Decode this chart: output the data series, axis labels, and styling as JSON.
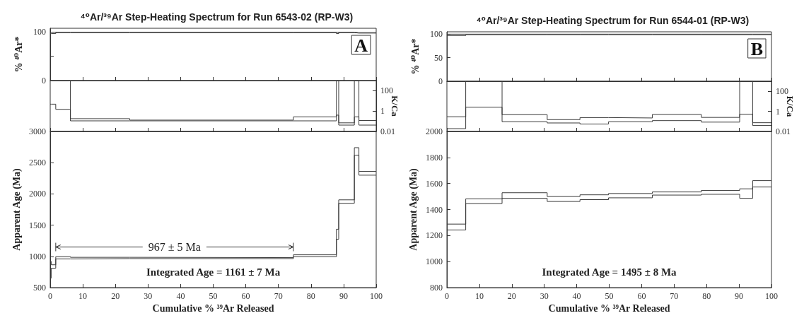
{
  "chart_data": [
    {
      "type": "step",
      "title": "⁴⁰Ar/³⁹Ar Step-Heating Spectrum for Run 6543-02 (RP-W3)",
      "ylabel": "% ⁴⁰Ar*",
      "xlim": [
        0,
        100
      ],
      "xticks": [
        0,
        10,
        20,
        30,
        40,
        50,
        60,
        70,
        80,
        90,
        100
      ],
      "ylim": [
        0,
        108
      ],
      "yticks": [
        0,
        {
          "value": 50,
          "label": null
        },
        100
      ],
      "tick_labels": "y",
      "annotations": [
        "A"
      ],
      "series": [
        {
          "color": "#3a3a3a",
          "x": [
            0,
            0.3,
            1.7,
            6.2,
            24.4,
            74.6,
            87.8,
            88.5,
            93.3,
            94.7,
            100
          ],
          "values": [
            100,
            100,
            100,
            100,
            100,
            100,
            100,
            100,
            99,
            99,
            99
          ]
        },
        {
          "color": "#3a3a3a",
          "x": [
            0,
            0.3,
            1.7,
            6.2,
            24.4,
            74.6,
            87.8,
            88.5,
            93.3,
            94.7,
            100
          ],
          "values": [
            97,
            97,
            99,
            99,
            99,
            99,
            97,
            99,
            98,
            98,
            98
          ]
        }
      ]
    },
    {
      "type": "step",
      "y2label": "K/Ca",
      "xlim": [
        0,
        100
      ],
      "xticks": [
        0,
        10,
        20,
        30,
        40,
        50,
        60,
        70,
        80,
        90,
        100
      ],
      "y2lim": [
        0.01,
        1000
      ],
      "y2ticks": [
        0.01,
        1,
        100
      ],
      "log": "y2",
      "tick_labels": "y",
      "series": [
        {
          "axis": "y2",
          "color": "#3a3a3a",
          "x": [
            0,
            0.3,
            1.7,
            6.2,
            24.4,
            74.6,
            87.8,
            88.5,
            93.3,
            94.7,
            100
          ],
          "values": [
            1000,
            1000,
            1000,
            0.18,
            0.13,
            0.27,
            1000,
            0.07,
            1000,
            0.12,
            0.12
          ]
        },
        {
          "axis": "y2",
          "color": "#3a3a3a",
          "x": [
            0,
            0.3,
            1.7,
            6.2,
            24.4,
            74.6,
            87.8,
            88.5,
            93.3,
            94.7,
            100
          ],
          "values": [
            4.8,
            4.8,
            1.5,
            0.11,
            0.11,
            0.11,
            0.4,
            0.042,
            0.27,
            0.042,
            0.042
          ]
        }
      ]
    },
    {
      "type": "step",
      "xlabel": "Cumulative % ³⁹Ar Released",
      "ylabel": "Apparent Age (Ma)",
      "xlim": [
        0,
        100
      ],
      "xticks": [
        0,
        10,
        20,
        30,
        40,
        50,
        60,
        70,
        80,
        90,
        100
      ],
      "ylim": [
        500,
        3000
      ],
      "yticks": [
        500,
        1000,
        1500,
        2000,
        2500,
        3000
      ],
      "annotations": [
        "967 ± 5 Ma",
        "Integrated Age = 1161 ± 7 Ma"
      ],
      "series": [
        {
          "color": "#3a3a3a",
          "x": [
            0,
            0.3,
            1.7,
            6.2,
            24.4,
            74.6,
            87.8,
            88.5,
            93.3,
            94.7,
            100
          ],
          "values": [
            920,
            865,
            995,
            985,
            980,
            1025,
            1435,
            1905,
            2740,
            2360,
            2360
          ]
        },
        {
          "color": "#3a3a3a",
          "x": [
            0,
            0.3,
            1.7,
            6.2,
            24.4,
            74.6,
            87.8,
            88.5,
            93.3,
            94.7,
            100
          ],
          "values": [
            650,
            810,
            960,
            965,
            965,
            995,
            1275,
            1850,
            2620,
            2300,
            2300
          ]
        }
      ]
    },
    {
      "type": "step",
      "title": "⁴⁰Ar/³⁹Ar Step-Heating Spectrum for Run 6544-01 (RP-W3)",
      "ylabel": "% ⁴⁰Ar*",
      "xlim": [
        0,
        100
      ],
      "xticks": [
        0,
        10,
        20,
        30,
        40,
        50,
        60,
        70,
        80,
        90,
        100
      ],
      "ylim": [
        0,
        105
      ],
      "yticks": [
        0,
        50,
        100
      ],
      "tick_labels": "y",
      "annotations": [
        "B"
      ],
      "series": [
        {
          "color": "#3a3a3a",
          "x": [
            0,
            5.8,
            17.0,
            30.9,
            41.0,
            49.8,
            63.3,
            78.4,
            90.2,
            94.2,
            100
          ],
          "values": [
            100,
            100,
            100,
            100,
            100,
            100,
            100,
            100,
            100,
            100,
            100
          ]
        },
        {
          "color": "#3a3a3a",
          "x": [
            0,
            5.8,
            17.0,
            30.9,
            41.0,
            49.8,
            63.3,
            78.4,
            90.2,
            94.2,
            100
          ],
          "values": [
            97,
            99,
            99,
            99,
            99,
            99,
            99,
            99,
            99,
            99,
            99
          ]
        }
      ]
    },
    {
      "type": "step",
      "y2label": "K/Ca",
      "xlim": [
        0,
        100
      ],
      "xticks": [
        0,
        10,
        20,
        30,
        40,
        50,
        60,
        70,
        80,
        90,
        100
      ],
      "y2lim": [
        0.01,
        1000
      ],
      "y2ticks": [
        0.01,
        1,
        100
      ],
      "log": "y2",
      "tick_labels": "y",
      "series": [
        {
          "axis": "y2",
          "color": "#3a3a3a",
          "x": [
            0,
            5.8,
            17.0,
            30.9,
            41.0,
            49.8,
            63.3,
            78.4,
            90.2,
            94.2,
            100
          ],
          "values": [
            0.29,
            1000,
            0.47,
            0.15,
            0.24,
            0.22,
            0.49,
            0.25,
            1000,
            0.074,
            0.074
          ]
        },
        {
          "axis": "y2",
          "color": "#3a3a3a",
          "x": [
            0,
            5.8,
            17.0,
            30.9,
            41.0,
            49.8,
            63.3,
            78.4,
            90.2,
            94.2,
            100
          ],
          "values": [
            0.019,
            2.6,
            0.093,
            0.07,
            0.055,
            0.093,
            0.12,
            0.085,
            0.52,
            0.039,
            0.039
          ]
        }
      ]
    },
    {
      "type": "step",
      "xlabel": "Cumulative % ³⁹Ar Released",
      "ylabel": "Apparent Age (Ma)",
      "xlim": [
        0,
        100
      ],
      "xticks": [
        0,
        10,
        20,
        30,
        40,
        50,
        60,
        70,
        80,
        90,
        100
      ],
      "ylim": [
        800,
        2000
      ],
      "yticks": [
        800,
        1000,
        1200,
        1400,
        1600,
        1800,
        2000
      ],
      "annotations": [
        "Integrated Age = 1495 ± 8 Ma"
      ],
      "series": [
        {
          "color": "#3a3a3a",
          "x": [
            0,
            5.8,
            17.0,
            30.9,
            41.0,
            49.8,
            63.3,
            78.4,
            90.2,
            94.2,
            100
          ],
          "values": [
            1288,
            1482,
            1529,
            1500,
            1513,
            1523,
            1535,
            1547,
            1559,
            1622,
            1622
          ]
        },
        {
          "color": "#3a3a3a",
          "x": [
            0,
            5.8,
            17.0,
            30.9,
            41.0,
            49.8,
            63.3,
            78.4,
            90.2,
            94.2,
            100
          ],
          "values": [
            1243,
            1446,
            1486,
            1462,
            1476,
            1490,
            1511,
            1517,
            1486,
            1573,
            1573
          ]
        }
      ]
    }
  ]
}
